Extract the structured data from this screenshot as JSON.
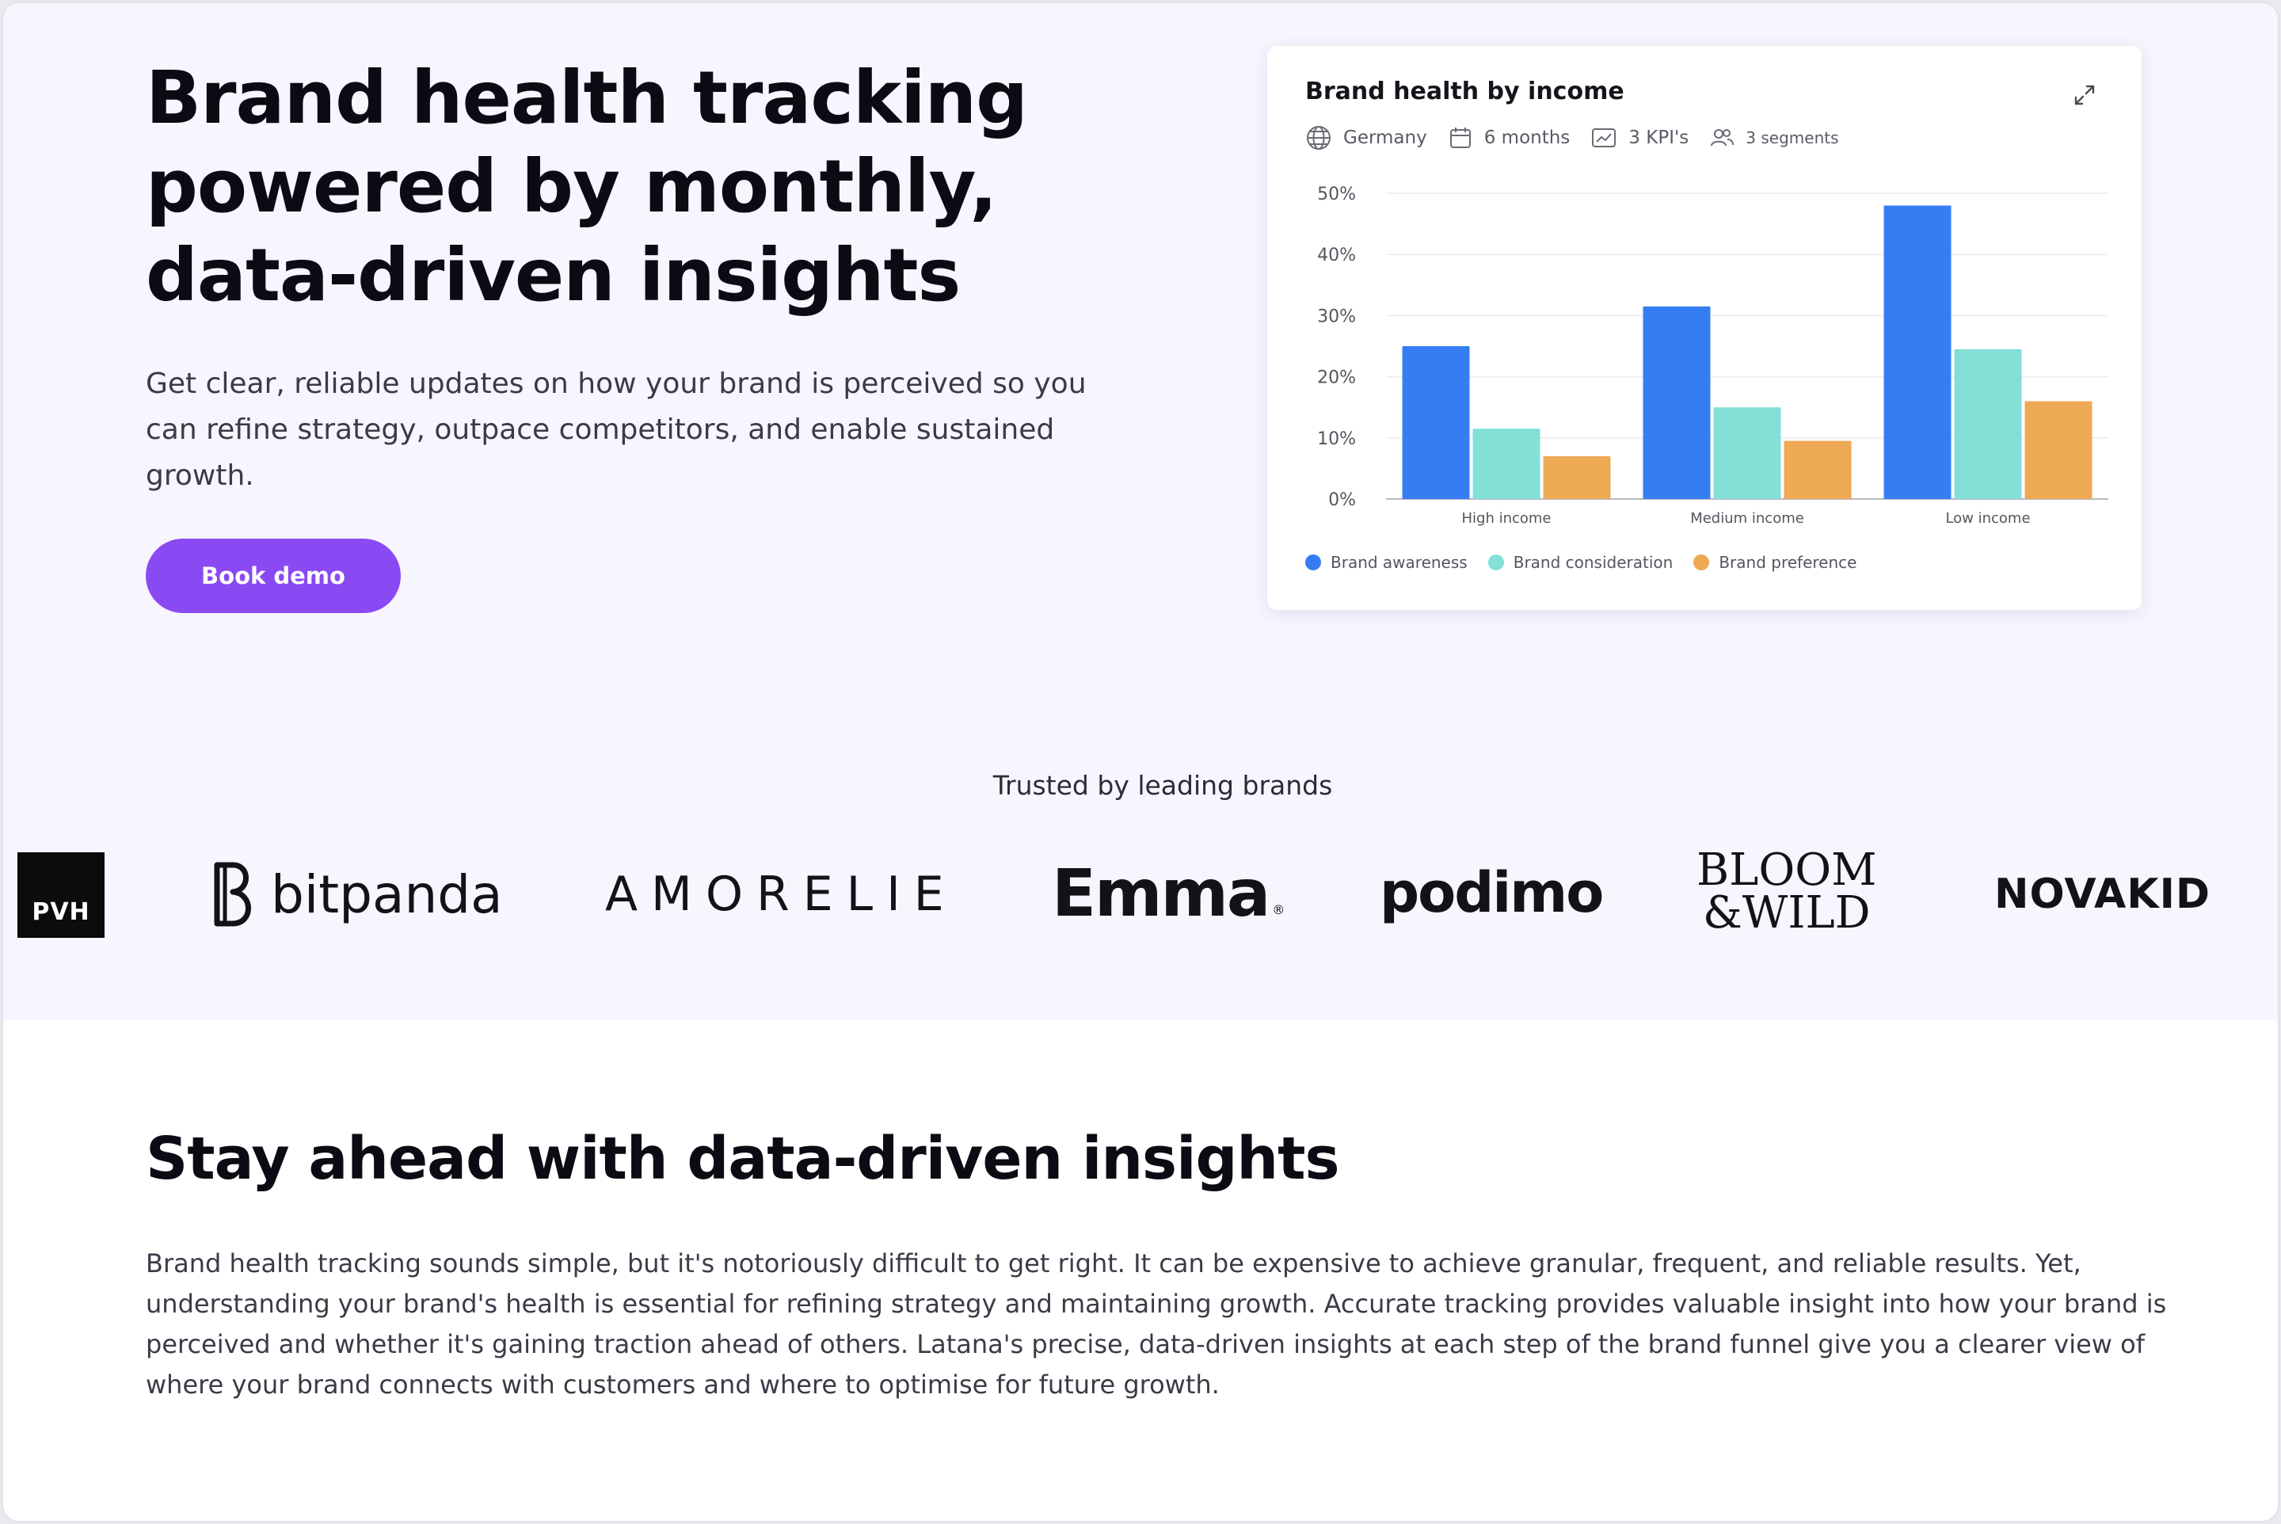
{
  "hero": {
    "title_lines": [
      "Brand health tracking",
      "powered by monthly,",
      "data-driven insights"
    ],
    "description_lines": [
      "Get clear, reliable updates on how your brand is perceived so you",
      "can refine strategy, outpace competitors, and enable sustained",
      "growth."
    ],
    "cta_label": "Book demo"
  },
  "card": {
    "title": "Brand health by income",
    "meta": {
      "country": "Germany",
      "period": "6 months",
      "kpis": "3 KPI's",
      "segments": "3 segments"
    },
    "icons": [
      "globe-icon",
      "calendar-icon",
      "chart-icon",
      "users-icon",
      "expand-icon"
    ]
  },
  "chart_data": {
    "type": "bar",
    "title": "Brand health by income",
    "categories": [
      "High income",
      "Medium income",
      "Low income"
    ],
    "series": [
      {
        "name": "Brand awareness",
        "color": "#377df2",
        "values": [
          25,
          31.5,
          48
        ]
      },
      {
        "name": "Brand consideration",
        "color": "#82e0d7",
        "values": [
          11.5,
          15,
          24.5
        ]
      },
      {
        "name": "Brand preference",
        "color": "#eea955",
        "values": [
          7,
          9.5,
          16
        ]
      }
    ],
    "ylim": [
      0,
      50
    ],
    "yticks": [
      "0%",
      "10%",
      "20%",
      "30%",
      "40%",
      "50%"
    ],
    "grid": true,
    "legend": "bottom-left"
  },
  "trusted": {
    "heading": "Trusted by leading brands",
    "logos": {
      "pvh": "PVH",
      "bitpanda": "bitpanda",
      "amorelie": "AMORELIE",
      "emma": "Emma",
      "emma_mark": "®",
      "podimo": "podimo",
      "bloom_line1": "BLOOM",
      "bloom_line2": "&WILD",
      "novakid": "NOVAKID"
    }
  },
  "section2": {
    "title": "Stay ahead with data-driven insights",
    "body_lines": [
      "Brand health tracking sounds simple, but it's notoriously difficult to get right. It can be expensive to achieve granular, frequent, and reliable results. Yet,",
      "understanding your brand's health is essential for refining strategy and maintaining growth. Accurate tracking provides valuable insight into how your brand is",
      "perceived and whether it's gaining traction ahead of others. Latana's precise, data-driven insights at each step of the brand funnel give you a clearer view of",
      "where your brand connects with customers and where to optimise for future growth."
    ]
  },
  "colors": {
    "hero_bg": "#f7f5fd",
    "cta": "#8a4af3",
    "text_dark": "#0b0b14",
    "text_body": "#3b3b47"
  }
}
